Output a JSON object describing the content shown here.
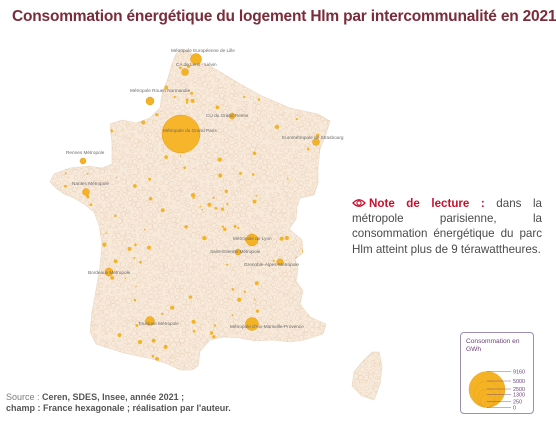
{
  "title": "Consommation énergétique du logement Hlm par intercommunalité en 2021",
  "note": {
    "lead": "Note de lecture :",
    "text": "dans la métropole parisienne, la consommation énergétique du parc Hlm atteint plus de 9 térawattheures."
  },
  "legend": {
    "title": "Consommation en GWh",
    "values": [
      "9160",
      "5000",
      "2500",
      "1300",
      "250",
      "0"
    ]
  },
  "source": {
    "prefix": "Source :",
    "line1": "Ceren, SDES, Insee, année 2021 ;",
    "line2": "champ : France hexagonale ; réalisation par l'auteur."
  },
  "colors": {
    "title": "#7a2c3a",
    "arrow": "#c8102e",
    "land": "#f8eadb",
    "bubble": "#f4b324",
    "legend": "#6b3f79"
  },
  "cities": [
    {
      "name": "Métropole Européenne de Lille",
      "value": 600
    },
    {
      "name": "CA de Lens - Liévin",
      "value": 250
    },
    {
      "name": "Métropole Rouen Normandie",
      "value": 350
    },
    {
      "name": "CU du Grand Reims",
      "value": 170
    },
    {
      "name": "Métropole du Grand Paris",
      "value": 9160
    },
    {
      "name": "Eurométropole de Strasbourg",
      "value": 300
    },
    {
      "name": "Rennes Métropole",
      "value": 230
    },
    {
      "name": "Nantes Métropole",
      "value": 300
    },
    {
      "name": "Métropole de Lyon",
      "value": 750
    },
    {
      "name": "Saint-Etienne Métropole",
      "value": 200
    },
    {
      "name": "Grenoble-Alpes-Métropole",
      "value": 230
    },
    {
      "name": "Bordeaux Métropole",
      "value": 320
    },
    {
      "name": "Toulouse Métropole",
      "value": 400
    },
    {
      "name": "Métropole d'Aix-Marseille-Provence",
      "value": 850
    }
  ]
}
